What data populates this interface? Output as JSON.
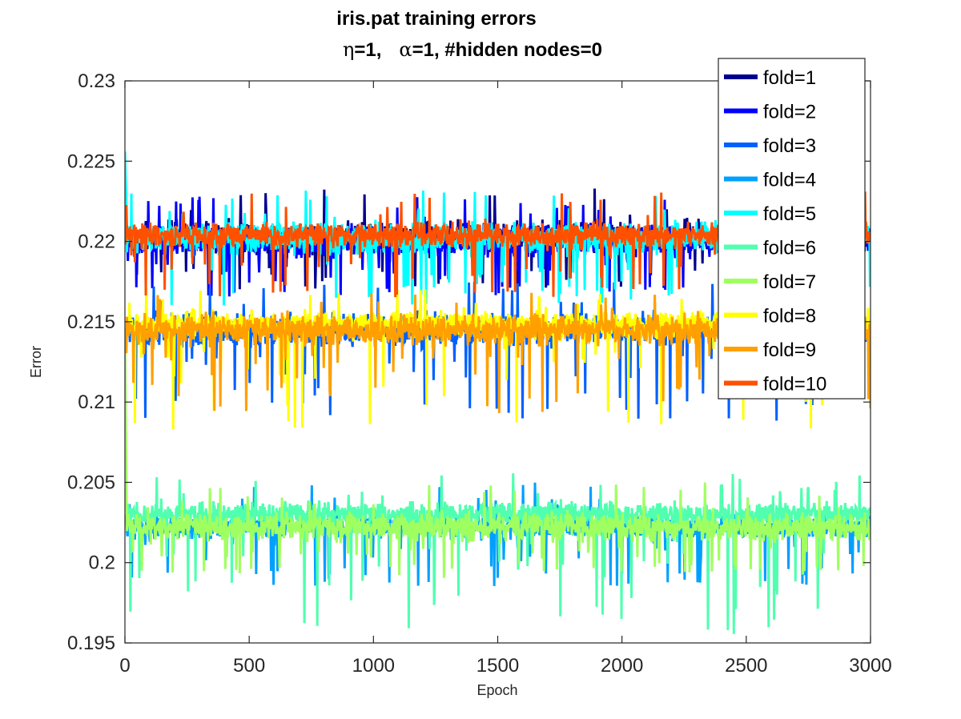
{
  "chart_data": {
    "type": "line",
    "title": "iris.pat training errors",
    "subtitle_parts": {
      "eta_symbol": "η",
      "eta_value": "=1,",
      "alpha_symbol": "α",
      "rest": "=1, #hidden nodes=0"
    },
    "xlabel": "Epoch",
    "ylabel": "Error",
    "xlim": [
      0,
      3000
    ],
    "ylim": [
      0.195,
      0.23
    ],
    "xticks": [
      0,
      500,
      1000,
      1500,
      2000,
      2500,
      3000
    ],
    "xtick_labels": [
      "0",
      "500",
      "1000",
      "1500",
      "2000",
      "2500",
      "3000"
    ],
    "yticks": [
      0.195,
      0.2,
      0.205,
      0.21,
      0.215,
      0.22,
      0.225,
      0.23
    ],
    "ytick_labels": [
      "0.195",
      "0.2",
      "0.205",
      "0.21",
      "0.215",
      "0.22",
      "0.225",
      "0.23"
    ],
    "grid": false,
    "legend_position": "top-right",
    "series": [
      {
        "name": "fold=1",
        "color": "#00008f",
        "mean": 0.2203,
        "spread": 0.0013,
        "low_tail": 0.217,
        "high_tail": 0.2234,
        "start": 0.2206
      },
      {
        "name": "fold=2",
        "color": "#0000ff",
        "mean": 0.22,
        "spread": 0.0014,
        "low_tail": 0.2165,
        "high_tail": 0.223,
        "start": 0.2207
      },
      {
        "name": "fold=3",
        "color": "#0060ff",
        "mean": 0.2145,
        "spread": 0.0014,
        "low_tail": 0.2088,
        "high_tail": 0.2175,
        "start": 0.214
      },
      {
        "name": "fold=4",
        "color": "#00a0ff",
        "mean": 0.2022,
        "spread": 0.001,
        "low_tail": 0.1985,
        "high_tail": 0.205,
        "start": 0.203
      },
      {
        "name": "fold=5",
        "color": "#00ffff",
        "mean": 0.2202,
        "spread": 0.0014,
        "low_tail": 0.216,
        "high_tail": 0.2232,
        "start": 0.2256
      },
      {
        "name": "fold=6",
        "color": "#50ffaf",
        "mean": 0.203,
        "spread": 0.0011,
        "low_tail": 0.1955,
        "high_tail": 0.2056,
        "start": 0.205
      },
      {
        "name": "fold=7",
        "color": "#a0ff60",
        "mean": 0.2022,
        "spread": 0.0012,
        "low_tail": 0.199,
        "high_tail": 0.205,
        "start": 0.214
      },
      {
        "name": "fold=8",
        "color": "#ffff00",
        "mean": 0.2148,
        "spread": 0.0013,
        "low_tail": 0.2082,
        "high_tail": 0.2172,
        "start": 0.215
      },
      {
        "name": "fold=9",
        "color": "#ffa000",
        "mean": 0.2145,
        "spread": 0.0013,
        "low_tail": 0.2093,
        "high_tail": 0.2168,
        "start": 0.2146
      },
      {
        "name": "fold=10",
        "color": "#ff5000",
        "mean": 0.2204,
        "spread": 0.0011,
        "low_tail": 0.2165,
        "high_tail": 0.2232,
        "start": 0.2198
      }
    ]
  }
}
